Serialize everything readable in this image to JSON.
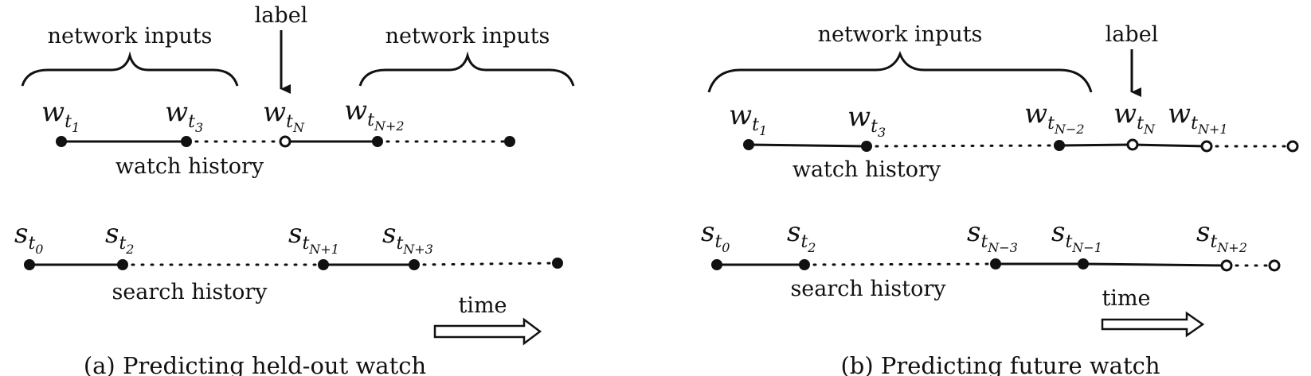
{
  "panels": {
    "a": {
      "caption": "(a) Predicting held-out watch",
      "label_text": "label",
      "brace_left_text": "network inputs",
      "brace_right_text": "network inputs",
      "watch_history_text": "watch history",
      "search_history_text": "search history",
      "time_text": "time",
      "watch_labels": [
        {
          "base": "w",
          "sub": "t",
          "subsub": "1"
        },
        {
          "base": "w",
          "sub": "t",
          "subsub": "3"
        },
        {
          "base": "w",
          "sub": "t",
          "subsub": "N"
        },
        {
          "base": "w",
          "sub": "t",
          "subsub": "N+2"
        }
      ],
      "search_labels": [
        {
          "base": "s",
          "sub": "t",
          "subsub": "0"
        },
        {
          "base": "s",
          "sub": "t",
          "subsub": "2"
        },
        {
          "base": "s",
          "sub": "t",
          "subsub": "N+1"
        },
        {
          "base": "s",
          "sub": "t",
          "subsub": "N+3"
        }
      ]
    },
    "b": {
      "caption": "(b) Predicting future watch",
      "label_text": "label",
      "brace_text": "network inputs",
      "watch_history_text": "watch history",
      "search_history_text": "search history",
      "time_text": "time",
      "watch_labels": [
        {
          "base": "w",
          "sub": "t",
          "subsub": "1"
        },
        {
          "base": "w",
          "sub": "t",
          "subsub": "3"
        },
        {
          "base": "w",
          "sub": "t",
          "subsub": "N−2"
        },
        {
          "base": "w",
          "sub": "t",
          "subsub": "N"
        },
        {
          "base": "w",
          "sub": "t",
          "subsub": "N+1"
        }
      ],
      "search_labels": [
        {
          "base": "s",
          "sub": "t",
          "subsub": "0"
        },
        {
          "base": "s",
          "sub": "t",
          "subsub": "2"
        },
        {
          "base": "s",
          "sub": "t",
          "subsub": "N−3"
        },
        {
          "base": "s",
          "sub": "t",
          "subsub": "N−1"
        },
        {
          "base": "s",
          "sub": "t",
          "subsub": "N+2"
        }
      ]
    }
  }
}
